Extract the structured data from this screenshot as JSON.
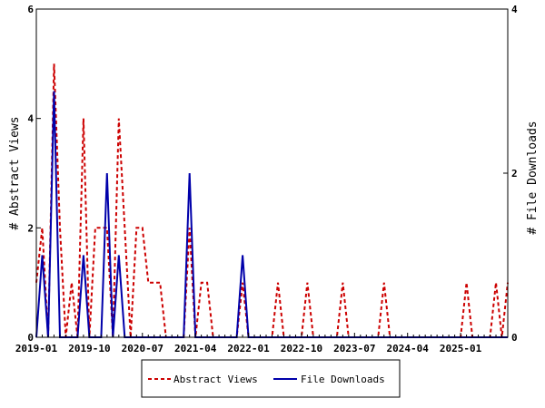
{
  "chart_data": {
    "type": "line",
    "title": "",
    "xlabel": "",
    "ylabel_left": "# Abstract Views",
    "ylabel_right": "# File Downloads",
    "ylim_left": [
      0,
      6
    ],
    "ylim_right": [
      0,
      4
    ],
    "yticks_left": [
      "0",
      "2",
      "4",
      "6"
    ],
    "yticks_right": [
      "0",
      "2",
      "4"
    ],
    "xlim": [
      "2019-01",
      "2025-09"
    ],
    "xtick_labels": [
      "2019-01",
      "2019-10",
      "2020-07",
      "2021-04",
      "2022-01",
      "2022-10",
      "2023-07",
      "2024-04",
      "2025-01"
    ],
    "legend_position": "bottom",
    "x": [
      "2019-01",
      "2019-02",
      "2019-03",
      "2019-04",
      "2019-05",
      "2019-06",
      "2019-07",
      "2019-08",
      "2019-09",
      "2019-10",
      "2019-11",
      "2019-12",
      "2020-01",
      "2020-02",
      "2020-03",
      "2020-04",
      "2020-05",
      "2020-06",
      "2020-07",
      "2020-08",
      "2020-09",
      "2020-10",
      "2020-11",
      "2020-12",
      "2021-01",
      "2021-02",
      "2021-03",
      "2021-04",
      "2021-05",
      "2021-06",
      "2021-07",
      "2021-08",
      "2021-09",
      "2021-10",
      "2021-11",
      "2021-12",
      "2022-01",
      "2022-02",
      "2022-03",
      "2022-04",
      "2022-05",
      "2022-06",
      "2022-07",
      "2022-08",
      "2022-09",
      "2022-10",
      "2022-11",
      "2022-12",
      "2023-01",
      "2023-02",
      "2023-03",
      "2023-04",
      "2023-05",
      "2023-06",
      "2023-07",
      "2023-08",
      "2023-09",
      "2023-10",
      "2023-11",
      "2023-12",
      "2024-01",
      "2024-02",
      "2024-03",
      "2024-04",
      "2024-05",
      "2024-06",
      "2024-07",
      "2024-08",
      "2024-09",
      "2024-10",
      "2024-11",
      "2024-12",
      "2025-01",
      "2025-02",
      "2025-03",
      "2025-04",
      "2025-05",
      "2025-06",
      "2025-07",
      "2025-08",
      "2025-09"
    ],
    "series": [
      {
        "name": "Abstract Views",
        "axis": "left",
        "color": "#cc0000",
        "dash": true,
        "values": [
          1,
          2,
          0,
          5,
          2,
          0,
          1,
          0,
          4,
          0,
          2,
          2,
          2,
          0,
          4,
          2,
          0,
          2,
          2,
          1,
          1,
          1,
          0,
          0,
          0,
          0,
          2,
          0,
          1,
          1,
          0,
          0,
          0,
          0,
          0,
          1,
          0,
          0,
          0,
          0,
          0,
          1,
          0,
          0,
          0,
          0,
          1,
          0,
          0,
          0,
          0,
          0,
          1,
          0,
          0,
          0,
          0,
          0,
          0,
          1,
          0,
          0,
          0,
          0,
          0,
          0,
          0,
          0,
          0,
          0,
          0,
          0,
          0,
          1,
          0,
          0,
          0,
          0,
          1,
          0,
          1
        ]
      },
      {
        "name": "File Downloads",
        "axis": "right",
        "color": "#0000aa",
        "dash": false,
        "values": [
          0,
          1,
          0,
          3,
          0,
          0,
          0,
          0,
          1,
          0,
          0,
          0,
          2,
          0,
          1,
          0,
          0,
          0,
          0,
          0,
          0,
          0,
          0,
          0,
          0,
          0,
          2,
          0,
          0,
          0,
          0,
          0,
          0,
          0,
          0,
          1,
          0,
          0,
          0,
          0,
          0,
          0,
          0,
          0,
          0,
          0,
          0,
          0,
          0,
          0,
          0,
          0,
          0,
          0,
          0,
          0,
          0,
          0,
          0,
          0,
          0,
          0,
          0,
          0,
          0,
          0,
          0,
          0,
          0,
          0,
          0,
          0,
          0,
          0,
          0,
          0,
          0,
          0,
          0,
          0,
          0
        ]
      }
    ]
  }
}
